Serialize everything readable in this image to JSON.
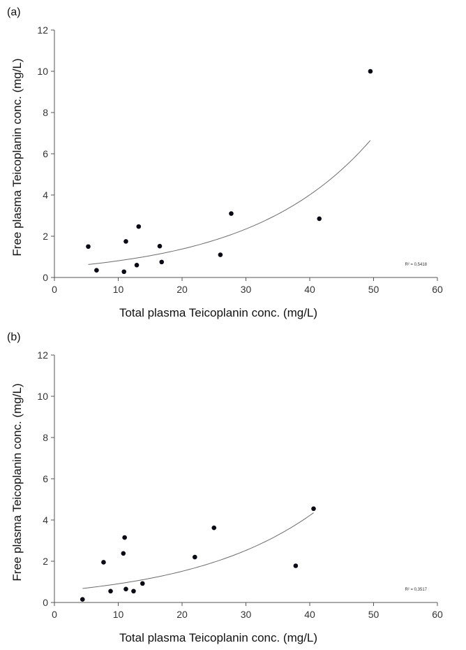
{
  "chart_data": [
    {
      "type": "scatter",
      "panel_label": "(a)",
      "xlabel": "Total plasma Teicoplanin conc. (mg/L)",
      "ylabel": "Free plasma Teicoplanin conc. (mg/L)",
      "xlim": [
        0,
        60
      ],
      "ylim": [
        0,
        12
      ],
      "xticks": [
        "0",
        "10",
        "20",
        "30",
        "40",
        "50",
        "60"
      ],
      "yticks": [
        "0",
        "2",
        "4",
        "6",
        "8",
        "10",
        "12"
      ],
      "grid": false,
      "points": [
        {
          "x": 5.3,
          "y": 1.5
        },
        {
          "x": 6.6,
          "y": 0.35
        },
        {
          "x": 10.9,
          "y": 0.28
        },
        {
          "x": 11.2,
          "y": 1.75
        },
        {
          "x": 12.9,
          "y": 0.6
        },
        {
          "x": 13.2,
          "y": 2.47
        },
        {
          "x": 16.5,
          "y": 1.52
        },
        {
          "x": 16.8,
          "y": 0.75
        },
        {
          "x": 26.0,
          "y": 1.1
        },
        {
          "x": 27.7,
          "y": 3.1
        },
        {
          "x": 41.5,
          "y": 2.85
        },
        {
          "x": 49.5,
          "y": 10.0
        }
      ],
      "trendline": {
        "type": "exponential",
        "x_start": 5.3,
        "x_end": 49.5,
        "y_start": 0.63,
        "y_end": 6.65
      },
      "annotation": "R² = 0,5418"
    },
    {
      "type": "scatter",
      "panel_label": "(b)",
      "xlabel": "Total plasma Teicoplanin conc. (mg/L)",
      "ylabel": "Free plasma Teicoplanin conc. (mg/L)",
      "xlim": [
        0,
        60
      ],
      "ylim": [
        0,
        12
      ],
      "xticks": [
        "0",
        "10",
        "20",
        "30",
        "40",
        "50",
        "60"
      ],
      "yticks": [
        "0",
        "2",
        "4",
        "6",
        "8",
        "10",
        "12"
      ],
      "grid": false,
      "points": [
        {
          "x": 4.4,
          "y": 0.15
        },
        {
          "x": 7.7,
          "y": 1.95
        },
        {
          "x": 8.8,
          "y": 0.55
        },
        {
          "x": 10.8,
          "y": 2.38
        },
        {
          "x": 11.0,
          "y": 3.15
        },
        {
          "x": 11.2,
          "y": 0.65
        },
        {
          "x": 12.4,
          "y": 0.55
        },
        {
          "x": 13.8,
          "y": 0.92
        },
        {
          "x": 22.0,
          "y": 2.2
        },
        {
          "x": 25.0,
          "y": 3.62
        },
        {
          "x": 37.8,
          "y": 1.78
        },
        {
          "x": 40.6,
          "y": 4.55
        }
      ],
      "trendline": {
        "type": "exponential",
        "x_start": 4.4,
        "x_end": 40.6,
        "y_start": 0.68,
        "y_end": 4.35
      },
      "annotation": "R² = 0,3517"
    }
  ]
}
